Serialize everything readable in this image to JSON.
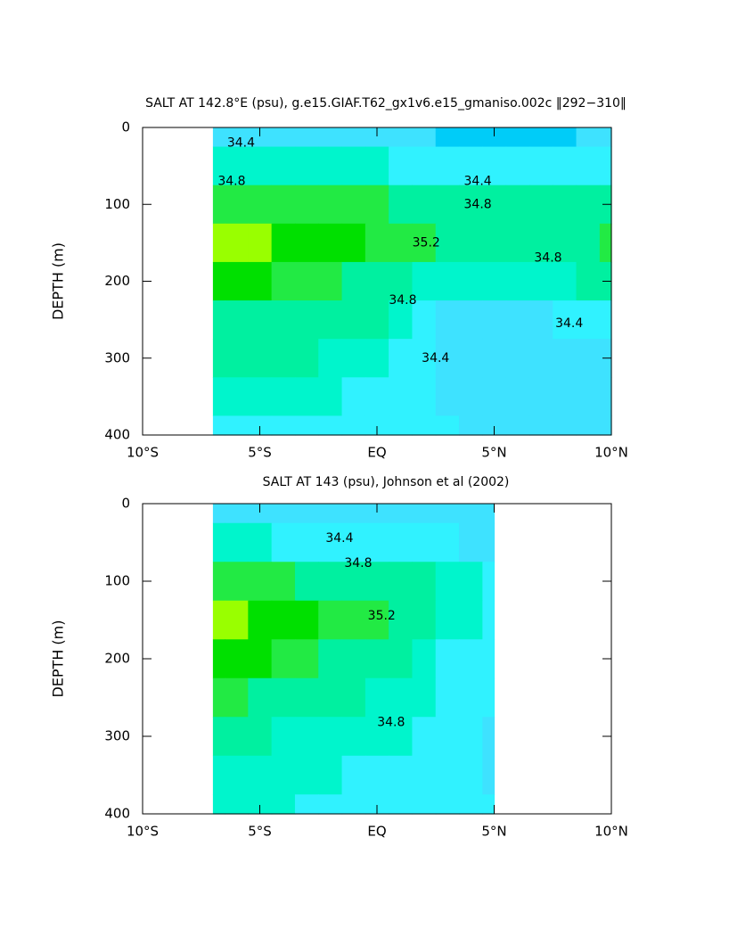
{
  "chart_data": [
    {
      "type": "contour",
      "title": "SALT AT 142.8°E (psu), g.e15.GIAF.T62_gx1v6.e15_gmaniso.002c ‖292−310‖",
      "ylabel": "DEPTH (m)",
      "xlim": [
        -10,
        10
      ],
      "ylim": [
        0,
        400
      ],
      "y_inverted": true,
      "xticks": [
        {
          "value": -10,
          "label": "10°S"
        },
        {
          "value": -5,
          "label": "5°S"
        },
        {
          "value": 0,
          "label": "EQ"
        },
        {
          "value": 5,
          "label": "5°N"
        },
        {
          "value": 10,
          "label": "10°N"
        }
      ],
      "yticks": [
        0,
        100,
        200,
        300,
        400
      ],
      "levels": [
        34.2,
        34.4,
        34.6,
        34.8,
        35.0,
        35.2,
        35.4
      ],
      "colors": [
        "#00ccf8",
        "#3ee2ff",
        "#30f2ff",
        "#00f5cc",
        "#00f0a0",
        "#22ea44",
        "#00e000",
        "#99ff00"
      ],
      "x": [
        -7,
        -6,
        -5,
        -4,
        -3,
        -2,
        -1,
        0,
        1,
        2,
        3,
        4,
        5,
        6,
        7,
        8,
        9,
        10
      ],
      "depth": [
        0,
        50,
        100,
        150,
        200,
        250,
        300,
        350,
        400
      ],
      "z": [
        [
          34.3,
          34.3,
          34.3,
          34.3,
          34.3,
          34.3,
          34.3,
          34.3,
          34.3,
          34.2,
          34.1,
          34.1,
          34.1,
          34.1,
          34.1,
          34.1,
          34.2,
          34.3
        ],
        [
          34.6,
          34.6,
          34.6,
          34.6,
          34.6,
          34.6,
          34.6,
          34.6,
          34.5,
          34.5,
          34.4,
          34.4,
          34.4,
          34.4,
          34.4,
          34.4,
          34.4,
          34.5
        ],
        [
          35.1,
          35.1,
          35.1,
          35.1,
          35.1,
          35.0,
          35.0,
          35.0,
          34.9,
          34.9,
          34.8,
          34.8,
          34.8,
          34.8,
          34.8,
          34.8,
          34.8,
          34.9
        ],
        [
          35.4,
          35.45,
          35.4,
          35.3,
          35.3,
          35.2,
          35.2,
          35.1,
          35.1,
          35.0,
          34.95,
          34.9,
          34.9,
          34.9,
          34.9,
          34.9,
          34.9,
          35.0
        ],
        [
          35.2,
          35.2,
          35.2,
          35.1,
          35.1,
          35.0,
          34.9,
          34.9,
          34.8,
          34.7,
          34.7,
          34.7,
          34.7,
          34.7,
          34.75,
          34.75,
          34.8,
          34.8
        ],
        [
          34.9,
          34.9,
          34.9,
          34.9,
          34.9,
          34.9,
          34.85,
          34.8,
          34.7,
          34.5,
          34.35,
          34.35,
          34.35,
          34.35,
          34.35,
          34.4,
          34.4,
          34.4
        ],
        [
          34.8,
          34.8,
          34.8,
          34.8,
          34.8,
          34.75,
          34.7,
          34.6,
          34.5,
          34.4,
          34.3,
          34.3,
          34.3,
          34.3,
          34.3,
          34.3,
          34.35,
          34.35
        ],
        [
          34.6,
          34.6,
          34.6,
          34.6,
          34.6,
          34.6,
          34.55,
          34.5,
          34.45,
          34.4,
          34.35,
          34.35,
          34.35,
          34.35,
          34.35,
          34.35,
          34.35,
          34.35
        ],
        [
          34.5,
          34.5,
          34.5,
          34.5,
          34.5,
          34.5,
          34.5,
          34.45,
          34.4,
          34.4,
          34.4,
          34.35,
          34.35,
          34.35,
          34.35,
          34.35,
          34.35,
          34.35
        ]
      ],
      "labels": [
        {
          "text": "34.4",
          "x": -5.8,
          "y": 20
        },
        {
          "text": "34.8",
          "x": -6.2,
          "y": 70
        },
        {
          "text": "34.4",
          "x": 4.3,
          "y": 70
        },
        {
          "text": "34.8",
          "x": 4.3,
          "y": 100
        },
        {
          "text": "35.2",
          "x": 2.1,
          "y": 150
        },
        {
          "text": "34.8",
          "x": 1.1,
          "y": 225
        },
        {
          "text": "34.4",
          "x": 2.5,
          "y": 300
        },
        {
          "text": "34.8",
          "x": 7.3,
          "y": 170
        },
        {
          "text": "34.4",
          "x": 8.2,
          "y": 255
        }
      ]
    },
    {
      "type": "contour",
      "title": "SALT AT 143 (psu), Johnson et al (2002)",
      "ylabel": "DEPTH (m)",
      "xlim": [
        -10,
        10
      ],
      "ylim": [
        0,
        400
      ],
      "y_inverted": true,
      "xticks": [
        {
          "value": -10,
          "label": "10°S"
        },
        {
          "value": -5,
          "label": "5°S"
        },
        {
          "value": 0,
          "label": "EQ"
        },
        {
          "value": 5,
          "label": "5°N"
        },
        {
          "value": 10,
          "label": "10°N"
        }
      ],
      "yticks": [
        0,
        100,
        200,
        300,
        400
      ],
      "levels": [
        34.2,
        34.4,
        34.6,
        34.8,
        35.0,
        35.2,
        35.4
      ],
      "colors": [
        "#00ccf8",
        "#3ee2ff",
        "#30f2ff",
        "#00f5cc",
        "#00f0a0",
        "#22ea44",
        "#00e000",
        "#99ff00"
      ],
      "x": [
        -7,
        -6,
        -5,
        -4,
        -3,
        -2,
        -1,
        0,
        1,
        2,
        3,
        4,
        5
      ],
      "depth": [
        0,
        50,
        100,
        150,
        200,
        250,
        300,
        350,
        400
      ],
      "z": [
        [
          34.3,
          34.3,
          34.3,
          34.3,
          34.3,
          34.3,
          34.25,
          34.25,
          34.3,
          34.3,
          34.3,
          34.3,
          34.3
        ],
        [
          34.7,
          34.6,
          34.6,
          34.5,
          34.45,
          34.4,
          34.45,
          34.5,
          34.5,
          34.45,
          34.4,
          34.35,
          34.3
        ],
        [
          35.1,
          35.1,
          35.05,
          35.0,
          34.9,
          34.9,
          34.9,
          34.95,
          34.9,
          34.8,
          34.7,
          34.6,
          34.5
        ],
        [
          35.45,
          35.4,
          35.3,
          35.25,
          35.2,
          35.1,
          35.0,
          35.0,
          34.95,
          34.85,
          34.75,
          34.6,
          34.5
        ],
        [
          35.3,
          35.2,
          35.2,
          35.1,
          35.0,
          34.95,
          34.9,
          34.85,
          34.8,
          34.7,
          34.5,
          34.45,
          34.4
        ],
        [
          35.05,
          35.0,
          34.95,
          34.9,
          34.85,
          34.85,
          34.8,
          34.75,
          34.7,
          34.6,
          34.45,
          34.4,
          34.4
        ],
        [
          34.85,
          34.8,
          34.8,
          34.75,
          34.7,
          34.7,
          34.65,
          34.6,
          34.6,
          34.55,
          34.45,
          34.4,
          34.35
        ],
        [
          34.75,
          34.7,
          34.7,
          34.65,
          34.6,
          34.6,
          34.55,
          34.5,
          34.5,
          34.5,
          34.45,
          34.4,
          34.35
        ],
        [
          34.65,
          34.6,
          34.6,
          34.6,
          34.55,
          34.55,
          34.5,
          34.5,
          34.5,
          34.45,
          34.45,
          34.4,
          34.4
        ]
      ],
      "labels": [
        {
          "text": "34.4",
          "x": -1.6,
          "y": 45
        },
        {
          "text": "34.8",
          "x": -0.8,
          "y": 77
        },
        {
          "text": "35.2",
          "x": 0.2,
          "y": 145
        },
        {
          "text": "34.8",
          "x": 0.6,
          "y": 282
        }
      ]
    }
  ]
}
